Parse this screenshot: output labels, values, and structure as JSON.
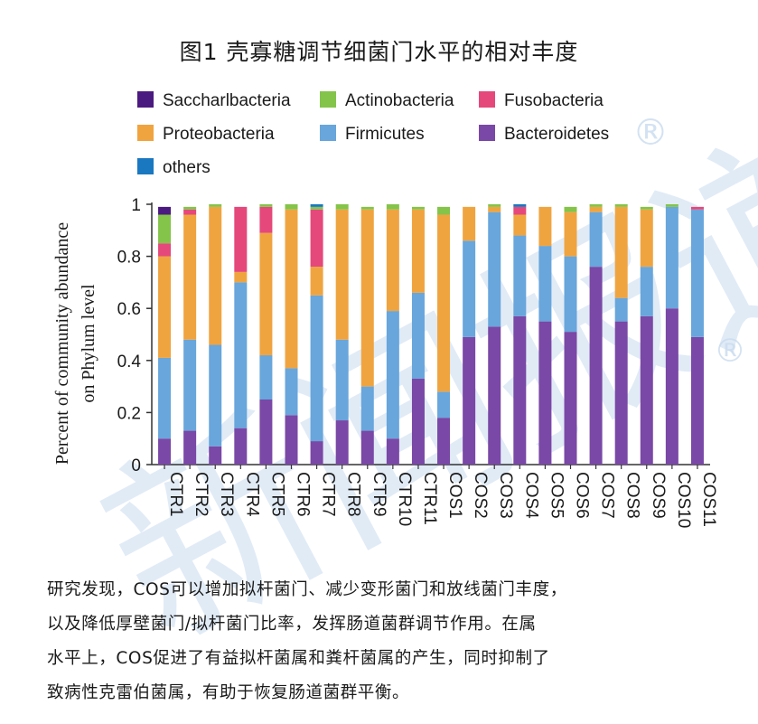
{
  "title": "图1 壳寡糖调节细菌门水平的相对丰度",
  "colors": {
    "Saccharlbacteria": "#4b1a80",
    "Actinobacteria": "#84c44a",
    "Fusobacteria": "#e5487a",
    "Proteobacteria": "#f0a440",
    "Firmicutes": "#68a6dc",
    "Bacteroidetes": "#7a48a6",
    "others": "#1a78c0",
    "watermark": "#c9dbef"
  },
  "watermark": {
    "text": "新闻报道",
    "mark": "®"
  },
  "chart_data": {
    "type": "bar",
    "stacked": true,
    "ylabel_lines": [
      "Percent of community abundance",
      "on Phylum level"
    ],
    "ylim": [
      0,
      1
    ],
    "yticks": [
      "0",
      "0.2",
      "0.4",
      "0.6",
      "0.8",
      "1"
    ],
    "legend_position": "top",
    "legend": [
      "Saccharlbacteria",
      "Actinobacteria",
      "Fusobacteria",
      "Proteobacteria",
      "Firmicutes",
      "Bacteroidetes",
      "others"
    ],
    "categories": [
      "CTR1",
      "CTR2",
      "CTR3",
      "CTR4",
      "CTR5",
      "CTR6",
      "CTR7",
      "CTR8",
      "CTR9",
      "CTR10",
      "CTR11",
      "COS1",
      "COS2",
      "COS3",
      "COS4",
      "COS5",
      "COS6",
      "COS7",
      "COS8",
      "COS9",
      "COS10",
      "COS11"
    ],
    "series": [
      {
        "name": "Bacteroidetes",
        "values": [
          0.1,
          0.13,
          0.07,
          0.14,
          0.25,
          0.19,
          0.09,
          0.17,
          0.13,
          0.1,
          0.33,
          0.18,
          0.49,
          0.53,
          0.57,
          0.55,
          0.51,
          0.76,
          0.55,
          0.57,
          0.6,
          0.49
        ]
      },
      {
        "name": "Firmicutes",
        "values": [
          0.31,
          0.35,
          0.39,
          0.56,
          0.17,
          0.18,
          0.56,
          0.31,
          0.17,
          0.49,
          0.33,
          0.1,
          0.37,
          0.44,
          0.31,
          0.29,
          0.29,
          0.21,
          0.09,
          0.19,
          0.39,
          0.49
        ]
      },
      {
        "name": "Proteobacteria",
        "values": [
          0.39,
          0.48,
          0.53,
          0.04,
          0.47,
          0.61,
          0.11,
          0.5,
          0.68,
          0.39,
          0.32,
          0.68,
          0.13,
          0.02,
          0.08,
          0.15,
          0.17,
          0.02,
          0.35,
          0.22,
          0.0,
          0.0
        ]
      },
      {
        "name": "Fusobacteria",
        "values": [
          0.05,
          0.02,
          0.0,
          0.25,
          0.1,
          0.0,
          0.22,
          0.0,
          0.0,
          0.0,
          0.0,
          0.0,
          0.0,
          0.0,
          0.03,
          0.0,
          0.0,
          0.0,
          0.0,
          0.0,
          0.0,
          0.01
        ]
      },
      {
        "name": "Actinobacteria",
        "values": [
          0.11,
          0.01,
          0.01,
          0.0,
          0.01,
          0.02,
          0.01,
          0.02,
          0.01,
          0.02,
          0.01,
          0.03,
          0.0,
          0.01,
          0.0,
          0.0,
          0.02,
          0.01,
          0.01,
          0.01,
          0.01,
          0.0
        ]
      },
      {
        "name": "Saccharlbacteria",
        "values": [
          0.03,
          0.0,
          0.0,
          0.0,
          0.0,
          0.0,
          0.0,
          0.0,
          0.0,
          0.0,
          0.0,
          0.0,
          0.0,
          0.0,
          0.0,
          0.0,
          0.0,
          0.0,
          0.0,
          0.0,
          0.0,
          0.0
        ]
      },
      {
        "name": "others",
        "values": [
          0.0,
          0.0,
          0.0,
          0.0,
          0.0,
          0.0,
          0.01,
          0.0,
          0.0,
          0.0,
          0.0,
          0.0,
          0.0,
          0.0,
          0.01,
          0.0,
          0.0,
          0.0,
          0.0,
          0.0,
          0.0,
          0.0
        ]
      }
    ]
  },
  "caption": [
    "研究发现，COS可以增加拟杆菌门、减少变形菌门和放线菌门丰度，",
    "以及降低厚壁菌门/拟杆菌门比率，发挥肠道菌群调节作用。在属",
    "水平上，COS促进了有益拟杆菌属和粪杆菌属的产生，同时抑制了",
    "致病性克雷伯菌属，有助于恢复肠道菌群平衡。"
  ]
}
